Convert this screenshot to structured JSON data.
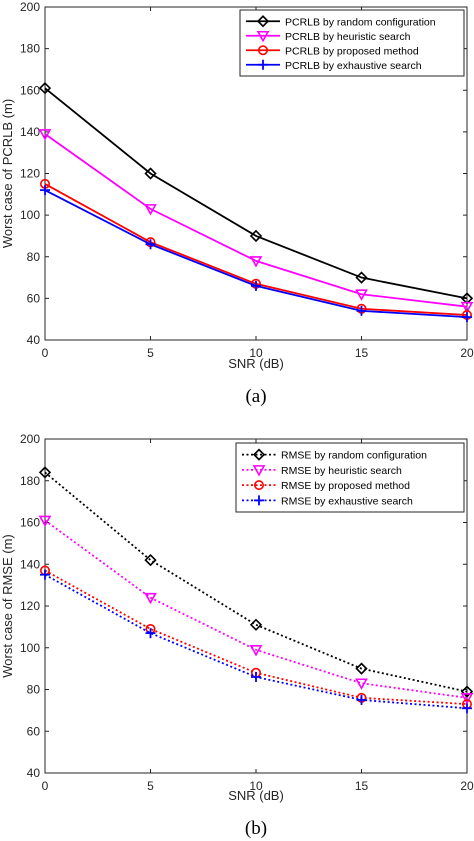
{
  "chart_data": [
    {
      "type": "line",
      "caption": "(a)",
      "xlabel": "SNR (dB)",
      "ylabel": "Worst case of PCRLB (m)",
      "xlim": [
        0,
        20
      ],
      "ylim": [
        40,
        200
      ],
      "xticks": [
        0,
        5,
        10,
        15,
        20
      ],
      "yticks": [
        40,
        60,
        80,
        100,
        120,
        140,
        160,
        180,
        200
      ],
      "x": [
        0,
        5,
        10,
        15,
        20
      ],
      "legend_position": "top-right",
      "line_style": "solid",
      "series": [
        {
          "name": "PCRLB by random configuration",
          "values": [
            161,
            120,
            90,
            70,
            60
          ],
          "color": "#000000",
          "marker": "diamond"
        },
        {
          "name": "PCRLB by heuristic search",
          "values": [
            139,
            103,
            78,
            62,
            56
          ],
          "color": "#ff00ff",
          "marker": "triangle-down"
        },
        {
          "name": "PCRLB by proposed method",
          "values": [
            115,
            87,
            67,
            55,
            52
          ],
          "color": "#ff0000",
          "marker": "circle"
        },
        {
          "name": "PCRLB by exhaustive search",
          "values": [
            112,
            86,
            66,
            54,
            51
          ],
          "color": "#0000ff",
          "marker": "plus"
        }
      ]
    },
    {
      "type": "line",
      "caption": "(b)",
      "xlabel": "SNR (dB)",
      "ylabel": "Worst case of RMSE (m)",
      "xlim": [
        0,
        20
      ],
      "ylim": [
        40,
        200
      ],
      "xticks": [
        0,
        5,
        10,
        15,
        20
      ],
      "yticks": [
        40,
        60,
        80,
        100,
        120,
        140,
        160,
        180,
        200
      ],
      "x": [
        0,
        5,
        10,
        15,
        20
      ],
      "legend_position": "top-right",
      "line_style": "dotted",
      "series": [
        {
          "name": "RMSE by random configuration",
          "values": [
            184,
            142,
            111,
            90,
            79
          ],
          "color": "#000000",
          "marker": "diamond"
        },
        {
          "name": "RMSE by heuristic search",
          "values": [
            161,
            124,
            99,
            83,
            76
          ],
          "color": "#ff00ff",
          "marker": "triangle-down"
        },
        {
          "name": "RMSE by proposed method",
          "values": [
            137,
            109,
            88,
            76,
            73
          ],
          "color": "#ff0000",
          "marker": "circle"
        },
        {
          "name": "RMSE by exhaustive search",
          "values": [
            135,
            107,
            86,
            75,
            71
          ],
          "color": "#0000ff",
          "marker": "plus"
        }
      ]
    }
  ]
}
